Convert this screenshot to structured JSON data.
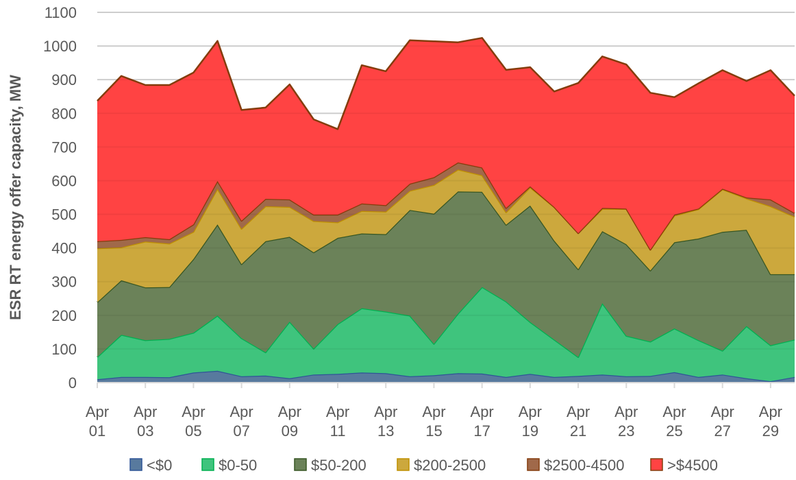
{
  "chart_data": {
    "type": "area",
    "stacked": true,
    "title": "",
    "xlabel": "",
    "ylabel": "ESR RT energy offer capacity, MW",
    "ylim": [
      0,
      1100
    ],
    "yticks": [
      0,
      100,
      200,
      300,
      400,
      500,
      600,
      700,
      800,
      900,
      1000,
      1100
    ],
    "grid": true,
    "legend_position": "bottom",
    "x": [
      "Apr 01",
      "Apr 02",
      "Apr 03",
      "Apr 04",
      "Apr 05",
      "Apr 06",
      "Apr 07",
      "Apr 08",
      "Apr 09",
      "Apr 10",
      "Apr 11",
      "Apr 12",
      "Apr 13",
      "Apr 14",
      "Apr 15",
      "Apr 16",
      "Apr 17",
      "Apr 18",
      "Apr 19",
      "Apr 20",
      "Apr 21",
      "Apr 22",
      "Apr 23",
      "Apr 24",
      "Apr 25",
      "Apr 26",
      "Apr 27",
      "Apr 28",
      "Apr 29",
      "Apr 30"
    ],
    "xtick_labels": [
      [
        "Apr",
        "01"
      ],
      [
        "Apr",
        "03"
      ],
      [
        "Apr",
        "05"
      ],
      [
        "Apr",
        "07"
      ],
      [
        "Apr",
        "09"
      ],
      [
        "Apr",
        "11"
      ],
      [
        "Apr",
        "13"
      ],
      [
        "Apr",
        "15"
      ],
      [
        "Apr",
        "17"
      ],
      [
        "Apr",
        "19"
      ],
      [
        "Apr",
        "21"
      ],
      [
        "Apr",
        "23"
      ],
      [
        "Apr",
        "25"
      ],
      [
        "Apr",
        "27"
      ],
      [
        "Apr",
        "29"
      ]
    ],
    "series": [
      {
        "name": "<$0",
        "fill": "#587A9E",
        "stroke": "#2F5597",
        "values": [
          10,
          17,
          17,
          16,
          30,
          35,
          19,
          21,
          13,
          24,
          26,
          30,
          28,
          19,
          22,
          28,
          27,
          17,
          26,
          17,
          20,
          24,
          19,
          20,
          31,
          17,
          24,
          13,
          4,
          17
        ]
      },
      {
        "name": "$0-50",
        "fill": "#3FC47D",
        "stroke": "#00B050",
        "values": [
          66,
          125,
          109,
          114,
          118,
          164,
          113,
          69,
          168,
          77,
          148,
          191,
          183,
          180,
          93,
          177,
          257,
          224,
          154,
          111,
          56,
          212,
          120,
          102,
          130,
          109,
          71,
          155,
          107,
          111
        ]
      },
      {
        "name": "$50-200",
        "fill": "#6B8259",
        "stroke": "#375623",
        "values": [
          163,
          162,
          157,
          154,
          219,
          271,
          220,
          330,
          252,
          286,
          256,
          222,
          230,
          314,
          387,
          363,
          283,
          228,
          346,
          294,
          261,
          214,
          272,
          211,
          256,
          302,
          353,
          286,
          211,
          194
        ]
      },
      {
        "name": "$200-2500",
        "fill": "#CCA83D",
        "stroke": "#BF9000",
        "values": [
          160,
          98,
          136,
          129,
          81,
          106,
          105,
          104,
          89,
          93,
          46,
          67,
          67,
          57,
          85,
          65,
          49,
          37,
          54,
          99,
          107,
          66,
          105,
          62,
          79,
          87,
          126,
          93,
          202,
          171
        ]
      },
      {
        "name": "$2500-4500",
        "fill": "#A0694A",
        "stroke": "#843C0C",
        "values": [
          21,
          22,
          13,
          13,
          22,
          23,
          24,
          22,
          22,
          19,
          23,
          22,
          19,
          21,
          23,
          21,
          23,
          13,
          3,
          1,
          0,
          3,
          1,
          0,
          3,
          2,
          2,
          3,
          20,
          11
        ]
      },
      {
        "name": ">$4500",
        "fill": "#FF4343",
        "stroke": "#843C0C",
        "values": [
          417,
          487,
          452,
          458,
          451,
          416,
          329,
          271,
          342,
          283,
          254,
          411,
          398,
          426,
          404,
          357,
          385,
          410,
          354,
          343,
          446,
          450,
          428,
          466,
          349,
          372,
          352,
          346,
          384,
          348
        ]
      }
    ]
  }
}
